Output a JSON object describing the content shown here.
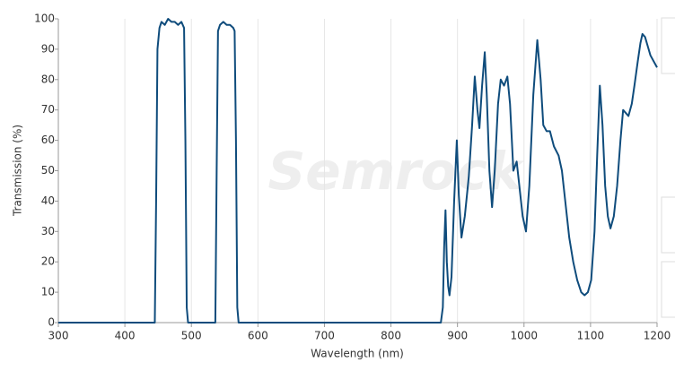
{
  "chart_data": {
    "type": "line",
    "xlabel": "Wavelength (nm)",
    "ylabel": "Transmission (%)",
    "watermark": "Semrock",
    "xlim": [
      300,
      1200
    ],
    "ylim": [
      0,
      100
    ],
    "xticks": [
      300,
      400,
      500,
      600,
      700,
      800,
      900,
      1000,
      1100,
      1200
    ],
    "yticks": [
      0,
      10,
      20,
      30,
      40,
      50,
      60,
      70,
      80,
      90,
      100
    ],
    "grid": "x",
    "x": [
      300,
      445,
      447,
      449,
      452,
      455,
      460,
      465,
      470,
      475,
      480,
      485,
      489,
      491,
      493,
      495,
      536,
      538,
      540,
      543,
      548,
      553,
      558,
      563,
      565,
      567,
      569,
      571,
      875,
      878,
      880,
      882,
      884,
      886,
      888,
      891,
      895,
      899,
      902,
      906,
      911,
      917,
      922,
      926,
      930,
      933,
      937,
      941,
      944,
      948,
      952,
      956,
      961,
      965,
      970,
      975,
      979,
      984,
      989,
      993,
      998,
      1003,
      1008,
      1014,
      1020,
      1025,
      1029,
      1034,
      1039,
      1045,
      1052,
      1057,
      1063,
      1068,
      1074,
      1080,
      1086,
      1091,
      1096,
      1101,
      1106,
      1110,
      1114,
      1118,
      1122,
      1126,
      1130,
      1135,
      1140,
      1145,
      1149,
      1153,
      1157,
      1162,
      1166,
      1171,
      1175,
      1178,
      1182,
      1186,
      1190,
      1195,
      1200
    ],
    "series": [
      {
        "color": "#0f4c7c",
        "values": [
          0,
          0,
          40,
          90,
          97,
          99,
          98,
          100,
          99,
          99,
          98,
          99,
          97,
          60,
          5,
          0,
          0,
          50,
          96,
          98,
          99,
          98,
          98,
          97,
          96,
          60,
          5,
          0,
          0,
          5,
          25,
          37,
          20,
          12,
          9,
          15,
          40,
          60,
          42,
          28,
          35,
          48,
          65,
          81,
          70,
          64,
          78,
          89,
          75,
          50,
          38,
          50,
          72,
          80,
          78,
          81,
          72,
          50,
          53,
          45,
          35,
          30,
          45,
          75,
          93,
          80,
          65,
          63,
          63,
          58,
          55,
          50,
          38,
          28,
          20,
          14,
          10,
          9,
          10,
          14,
          30,
          55,
          78,
          65,
          45,
          35,
          31,
          35,
          45,
          60,
          70,
          69,
          68,
          72,
          78,
          86,
          92,
          95,
          94,
          91,
          88,
          86,
          84
        ]
      }
    ]
  }
}
